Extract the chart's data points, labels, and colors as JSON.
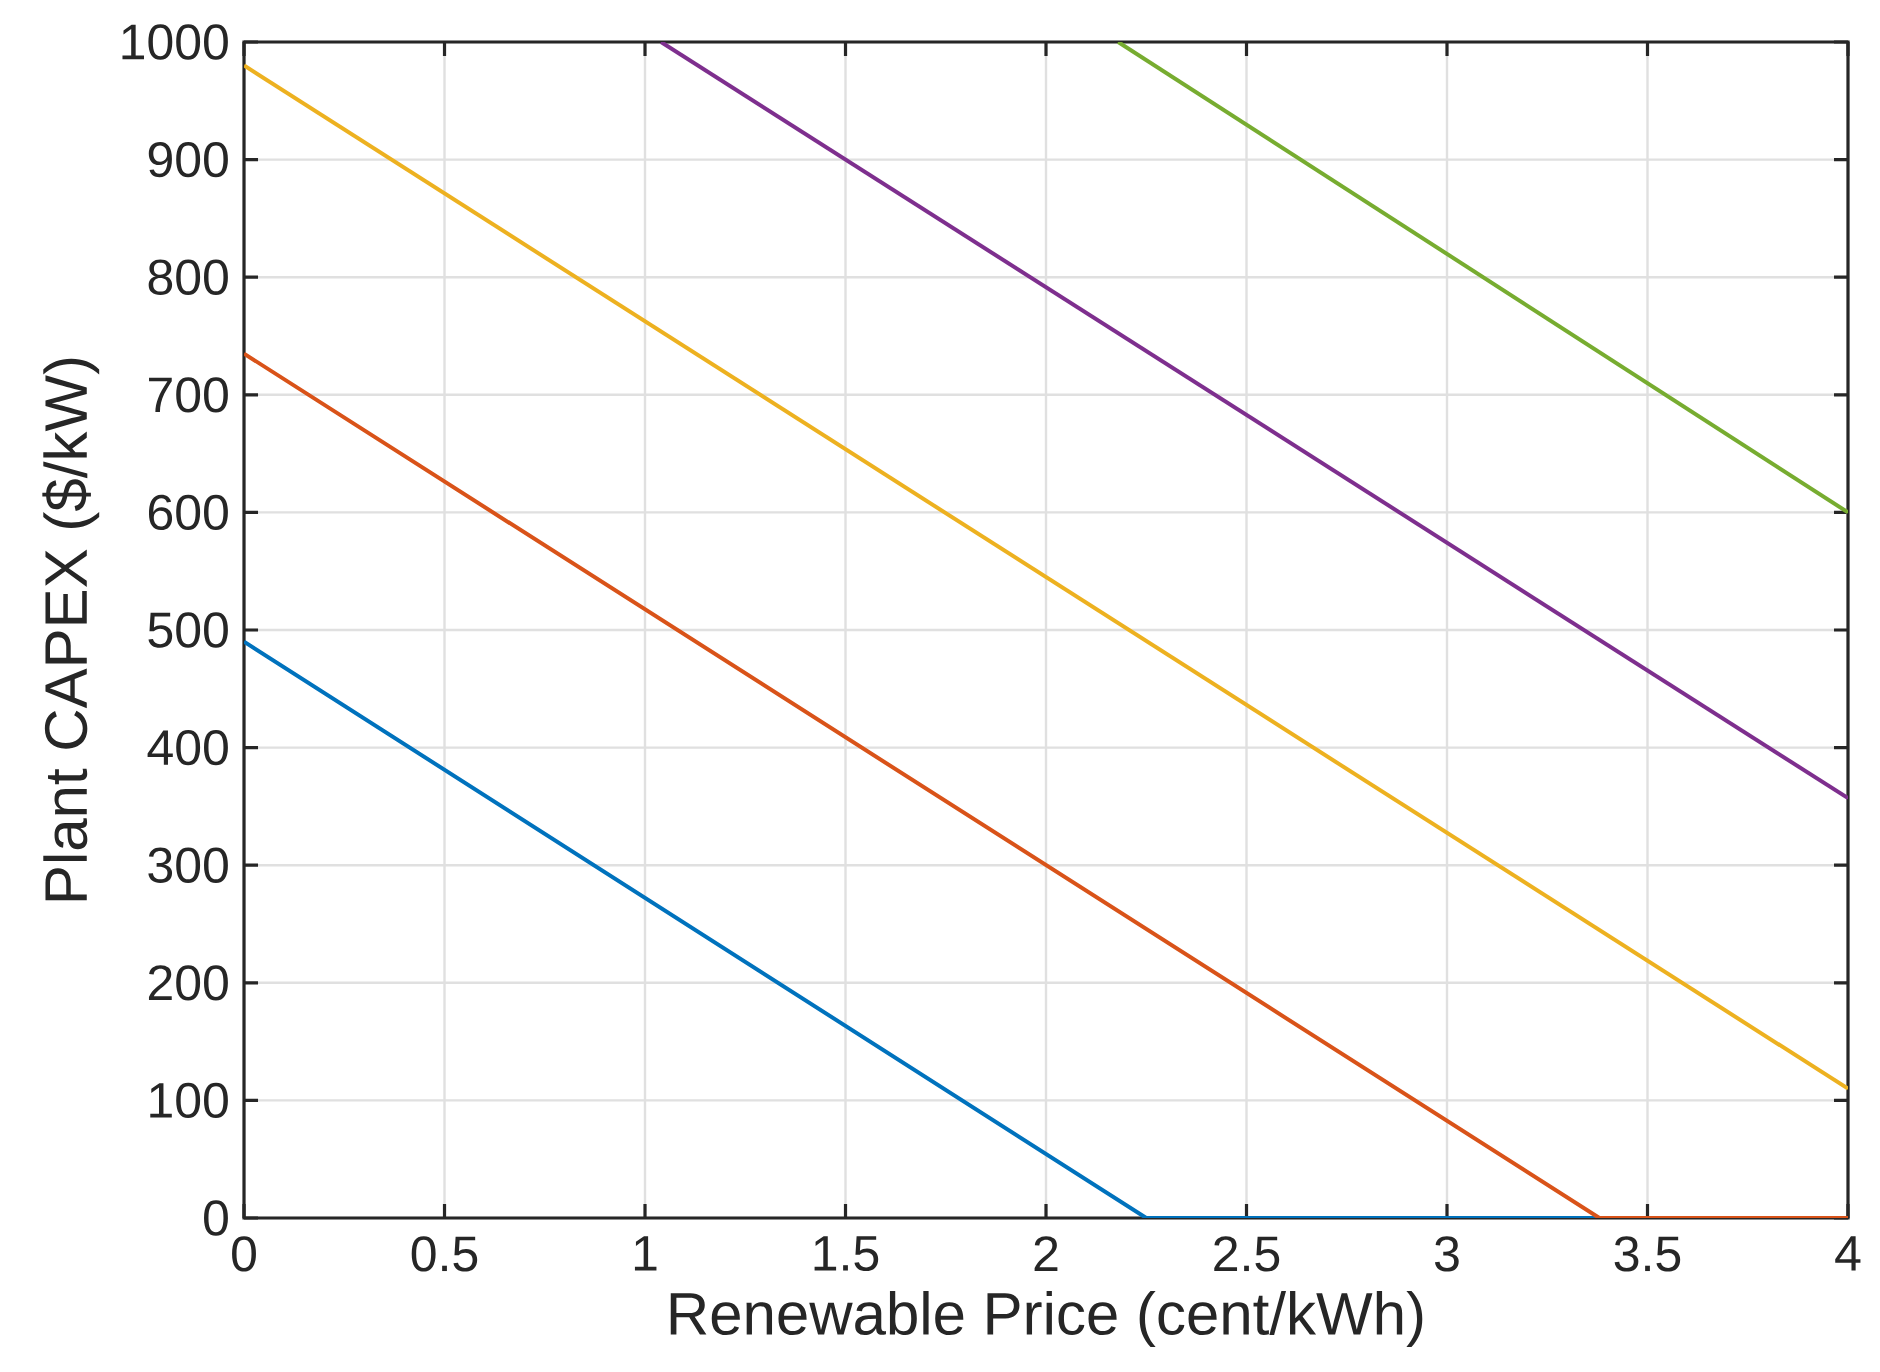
{
  "chart_data": {
    "type": "line",
    "xlabel": "Renewable Price (cent/kWh)",
    "ylabel": "Plant CAPEX ($/kW)",
    "xlim": [
      0,
      4
    ],
    "ylim": [
      0,
      1000
    ],
    "xticks": [
      0,
      0.5,
      1,
      1.5,
      2,
      2.5,
      3,
      3.5,
      4
    ],
    "yticks": [
      0,
      100,
      200,
      300,
      400,
      500,
      600,
      700,
      800,
      900,
      1000
    ],
    "grid": true,
    "series": [
      {
        "color": "#0072bd",
        "x": [
          0,
          2.25,
          4
        ],
        "values": [
          490,
          0,
          0
        ]
      },
      {
        "color": "#d95319",
        "x": [
          0,
          3.38,
          4
        ],
        "values": [
          735,
          0,
          0
        ]
      },
      {
        "color": "#edb120",
        "x": [
          0,
          4
        ],
        "values": [
          980,
          110
        ]
      },
      {
        "color": "#7e2f8e",
        "x": [
          1.04,
          4
        ],
        "values": [
          1000,
          357
        ]
      },
      {
        "color": "#77ac30",
        "x": [
          2.18,
          4
        ],
        "values": [
          1000,
          600
        ]
      }
    ]
  }
}
